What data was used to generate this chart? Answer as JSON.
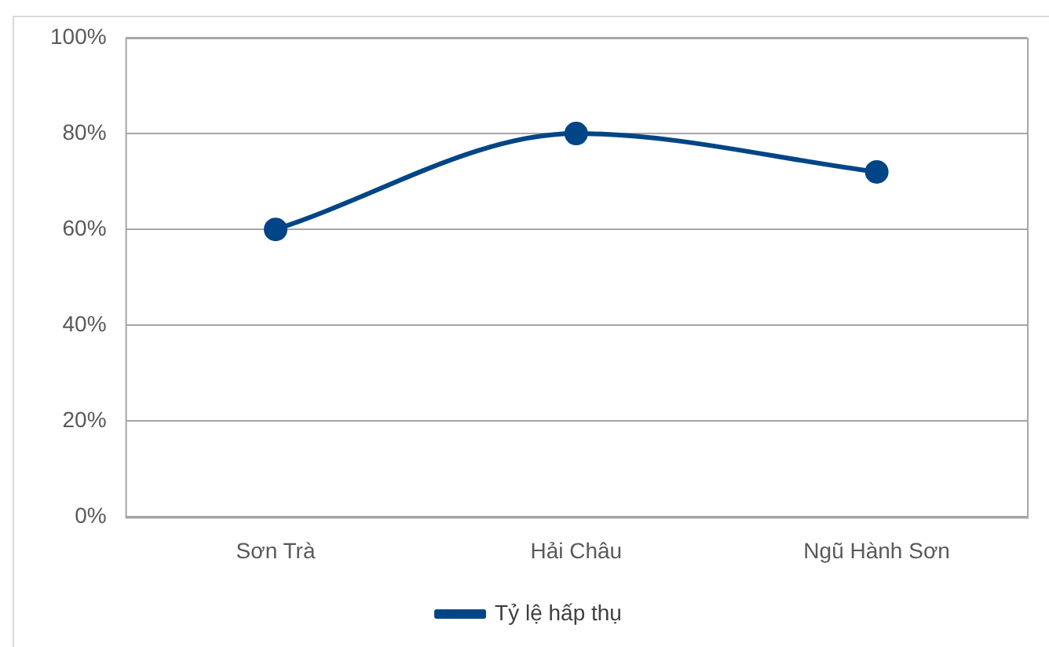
{
  "chart_data": {
    "type": "line",
    "categories": [
      "Sơn Trà",
      "Hải Châu",
      "Ngũ Hành Sơn"
    ],
    "series": [
      {
        "name": "Tỷ lệ hấp thụ",
        "color": "#004586",
        "values": [
          60,
          80,
          72
        ]
      }
    ],
    "ylim": [
      0,
      100
    ],
    "yticks": [
      {
        "value": 0,
        "label": "0%"
      },
      {
        "value": 20,
        "label": "20%"
      },
      {
        "value": 40,
        "label": "40%"
      },
      {
        "value": 60,
        "label": "60%"
      },
      {
        "value": 80,
        "label": "80%"
      },
      {
        "value": 100,
        "label": "100%"
      }
    ],
    "grid": "y",
    "legend": "bottom",
    "marker": "circle",
    "line_style": "solid"
  }
}
